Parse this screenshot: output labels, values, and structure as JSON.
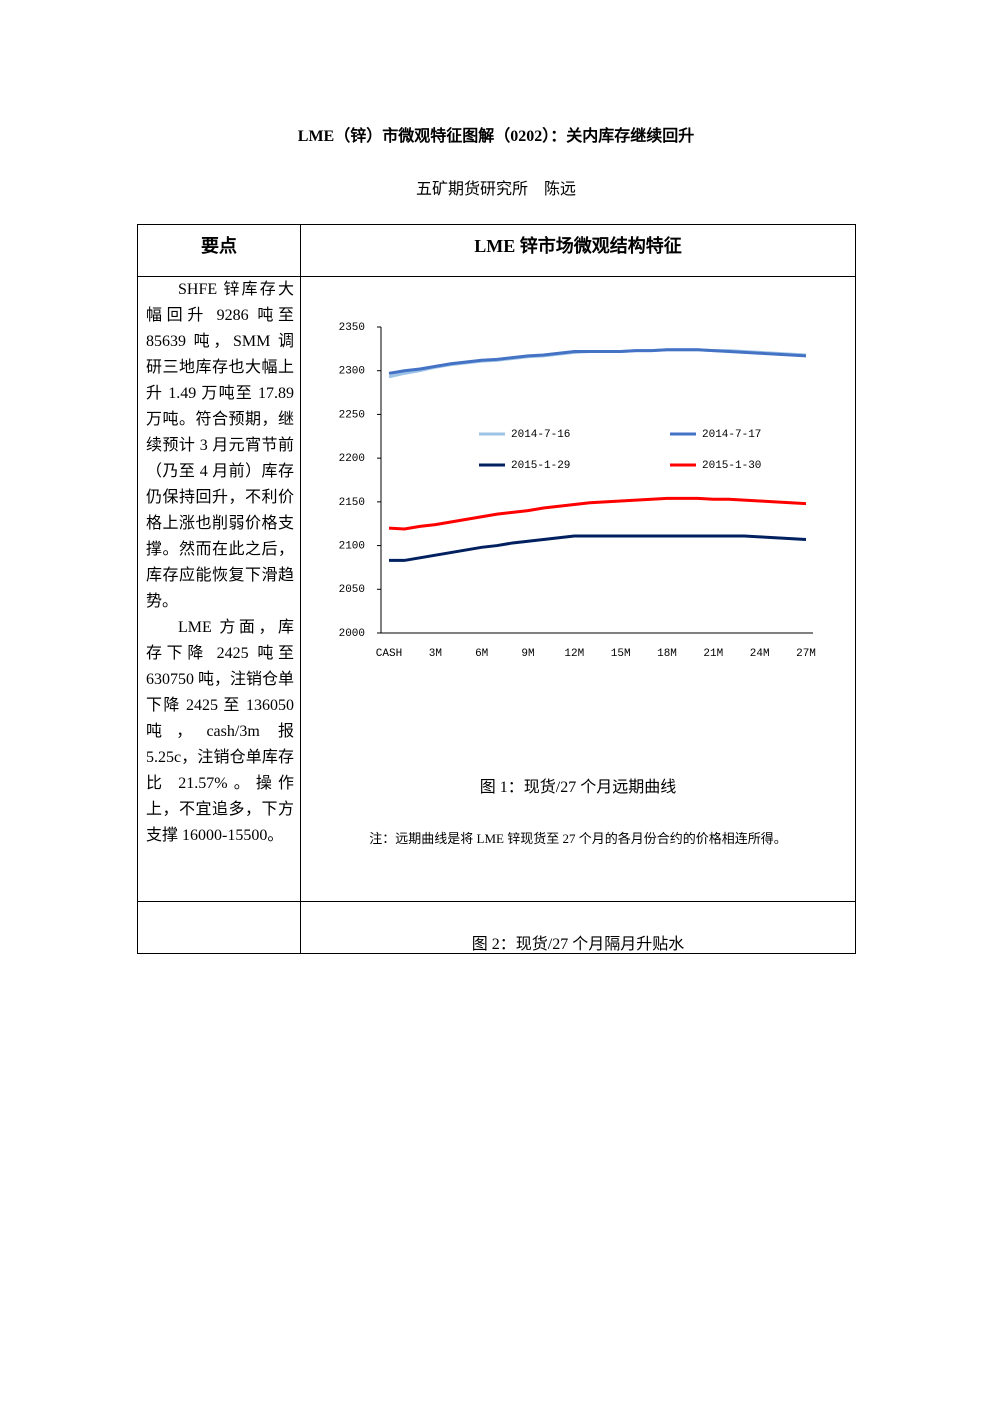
{
  "header": {
    "title": "LME（锌）市微观特征图解（0202）：关内库存继续回升",
    "author": "五矿期货研究所　陈远"
  },
  "table": {
    "headers": [
      "要点",
      "LME 锌市场微观结构特征"
    ],
    "paragraphs": [
      "SHFE 锌库存大幅回升 9286 吨至 85639 吨，SMM 调研三地库存也大幅上升 1.49 万吨至 17.89 万吨。符合预期，继续预计 3 月元宵节前（乃至 4 月前）库存仍保持回升，不利价格上涨也削弱价格支撑。然而在此之后，库存应能恢复下滑趋势。",
      "LME 方面，库存下降 2425 吨至 630750 吨，注销仓单下降 2425 至 136050 吨，cash/3m 报 5.25c，注销仓单库存比 21.57%。操作上，不宜追多，下方支撑 16000-15500。"
    ],
    "figure1_caption": "图 1：现货/27 个月远期曲线",
    "note": "注：远期曲线是将 LME 锌现货至 27 个月的各月份合约的价格相连所得。",
    "figure2_caption": "图 2：现货/27 个月隔月升贴水"
  },
  "chart_data": {
    "type": "line",
    "categories": [
      "CASH",
      null,
      null,
      "3M",
      null,
      null,
      "6M",
      null,
      null,
      "9M",
      null,
      null,
      "12M",
      null,
      null,
      "15M",
      null,
      null,
      "18M",
      null,
      null,
      "21M",
      null,
      null,
      "24M",
      null,
      null,
      "27M"
    ],
    "series": [
      {
        "name": "2014-7-16",
        "color": "#9dc3e6",
        "values": [
          2293,
          2297,
          2300,
          2304,
          2307,
          2309,
          2311,
          2312,
          2314,
          2316,
          2317,
          2319,
          2321,
          2322,
          2322,
          2322,
          2323,
          2323,
          2324,
          2324,
          2324,
          2323,
          2323,
          2322,
          2321,
          2320,
          2319,
          2318
        ]
      },
      {
        "name": "2014-7-17",
        "color": "#4472c4",
        "values": [
          2297,
          2300,
          2302,
          2305,
          2308,
          2310,
          2312,
          2313,
          2315,
          2317,
          2318,
          2320,
          2322,
          2322,
          2322,
          2322,
          2323,
          2323,
          2324,
          2324,
          2324,
          2323,
          2322,
          2321,
          2320,
          2319,
          2318,
          2317
        ]
      },
      {
        "name": "2015-1-29",
        "color": "#002060",
        "values": [
          2083,
          2083,
          2086,
          2089,
          2092,
          2095,
          2098,
          2100,
          2103,
          2105,
          2107,
          2109,
          2111,
          2111,
          2111,
          2111,
          2111,
          2111,
          2111,
          2111,
          2111,
          2111,
          2111,
          2111,
          2110,
          2109,
          2108,
          2107
        ]
      },
      {
        "name": "2015-1-30",
        "color": "#ff0000",
        "values": [
          2120,
          2119,
          2122,
          2124,
          2127,
          2130,
          2133,
          2136,
          2138,
          2140,
          2143,
          2145,
          2147,
          2149,
          2150,
          2151,
          2152,
          2153,
          2154,
          2154,
          2154,
          2153,
          2153,
          2152,
          2151,
          2150,
          2149,
          2148
        ]
      }
    ],
    "ylim": [
      2000,
      2350
    ],
    "yticks": [
      2000,
      2050,
      2100,
      2150,
      2200,
      2250,
      2300,
      2350
    ],
    "grid": false
  }
}
